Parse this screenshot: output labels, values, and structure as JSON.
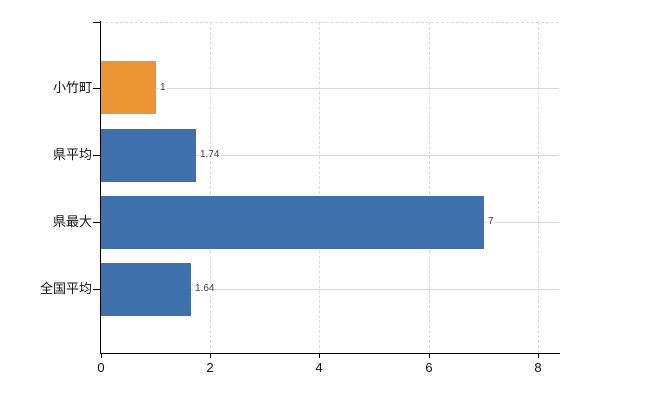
{
  "chart_data": {
    "type": "bar",
    "orientation": "horizontal",
    "title": "",
    "categories": [
      "小竹町",
      "県平均",
      "県最大",
      "全国平均"
    ],
    "values": [
      1,
      1.74,
      7,
      1.64
    ],
    "value_labels": [
      "1",
      "1.74",
      "7",
      "1.64"
    ],
    "bar_colors": [
      "#ED9434",
      "#3D70AD",
      "#3D70AD",
      "#3D70AD"
    ],
    "xlim": [
      0,
      8
    ],
    "xticks": [
      0,
      2,
      4,
      6,
      8
    ],
    "xtick_labels": [
      "0",
      "2",
      "4",
      "6",
      "8"
    ],
    "xlabel": "",
    "ylabel": "",
    "legend": "none",
    "grid": {
      "vertical_style": "dashed",
      "horizontal_style": "solid",
      "top_border_style": "dashed",
      "color": "#D9D9D9"
    },
    "colors": {
      "highlight_bar": "#ED9434",
      "default_bar": "#3D70AD",
      "axis": "#000000",
      "value_label_text": "#404040",
      "tick_label_text": "#111111",
      "background": "#FFFFFF"
    }
  }
}
